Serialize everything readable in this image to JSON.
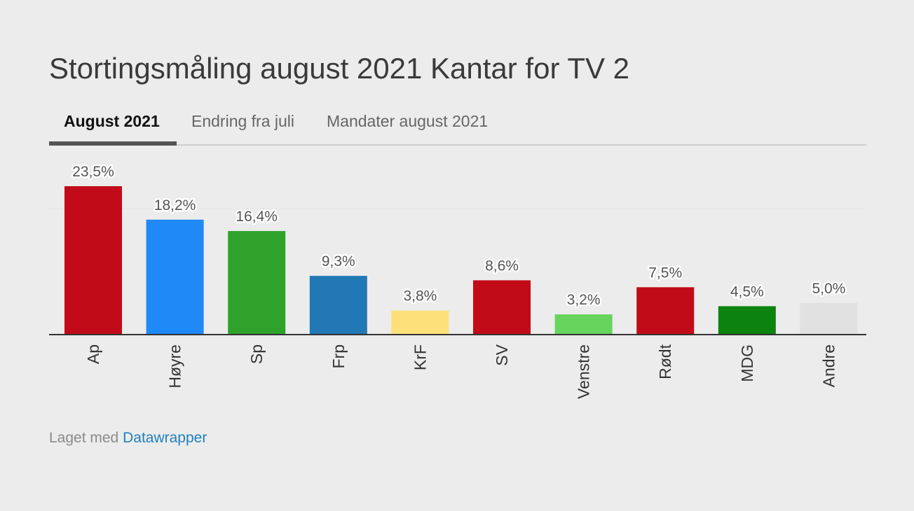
{
  "title": "Stortingsmåling august 2021 Kantar for TV 2",
  "tabs": [
    {
      "label": "August 2021",
      "active": true
    },
    {
      "label": "Endring fra juli",
      "active": false
    },
    {
      "label": "Mandater august 2021",
      "active": false
    }
  ],
  "footer": {
    "prefix": "Laget med",
    "link": "Datawrapper"
  },
  "chart_data": {
    "type": "bar",
    "categories": [
      "Ap",
      "Høyre",
      "Sp",
      "Frp",
      "KrF",
      "SV",
      "Venstre",
      "Rødt",
      "MDG",
      "Andre"
    ],
    "values": [
      23.5,
      18.2,
      16.4,
      9.3,
      3.8,
      8.6,
      3.2,
      7.5,
      4.5,
      5.0
    ],
    "labels": [
      "23,5%",
      "18,2%",
      "16,4%",
      "9,3%",
      "3,8%",
      "8,6%",
      "3,2%",
      "7,5%",
      "4,5%",
      "5,0%"
    ],
    "colors": [
      "#c10b19",
      "#1f89f5",
      "#2fa22c",
      "#2178b5",
      "#fde07a",
      "#c10b19",
      "#66d45d",
      "#c10b19",
      "#0b830e",
      "#e1e1e1"
    ],
    "ylim": [
      0,
      23.5
    ],
    "grid": true,
    "title": "",
    "xlabel": "",
    "ylabel": ""
  }
}
